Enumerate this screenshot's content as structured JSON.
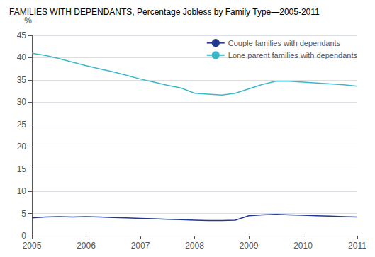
{
  "chart_data": {
    "type": "line",
    "title": "FAMILIES WITH DEPENDANTS, Percentage Jobless by Family Type—2005-2011",
    "ylabel": "%",
    "x": [
      2005.0,
      2005.25,
      2005.5,
      2005.75,
      2006.0,
      2006.25,
      2006.5,
      2006.75,
      2007.0,
      2007.25,
      2007.5,
      2007.75,
      2008.0,
      2008.25,
      2008.5,
      2008.75,
      2009.0,
      2009.25,
      2009.5,
      2009.75,
      2010.0,
      2010.25,
      2010.5,
      2010.75,
      2011.0
    ],
    "series": [
      {
        "name": "Couple families with dependants",
        "color": "#1F3A8F",
        "values": [
          4.0,
          4.2,
          4.3,
          4.2,
          4.3,
          4.2,
          4.1,
          4.0,
          3.9,
          3.8,
          3.7,
          3.6,
          3.5,
          3.4,
          3.4,
          3.5,
          4.5,
          4.7,
          4.8,
          4.7,
          4.6,
          4.5,
          4.4,
          4.3,
          4.2
        ]
      },
      {
        "name": "Lone parent families with dependants",
        "color": "#3BB8C8",
        "values": [
          41.0,
          40.5,
          39.8,
          39.0,
          38.2,
          37.5,
          36.8,
          36.0,
          35.2,
          34.5,
          33.8,
          33.2,
          32.0,
          31.8,
          31.6,
          32.0,
          33.0,
          34.0,
          34.7,
          34.7,
          34.5,
          34.3,
          34.1,
          33.9,
          33.6
        ]
      }
    ],
    "xlim": [
      2005,
      2011
    ],
    "xticks": [
      2005,
      2006,
      2007,
      2008,
      2009,
      2010,
      2011
    ],
    "ylim": [
      0,
      45
    ],
    "yticks": [
      0,
      5,
      10,
      15,
      20,
      25,
      30,
      35,
      40,
      45
    ],
    "grid": true,
    "legend": "upper right"
  }
}
